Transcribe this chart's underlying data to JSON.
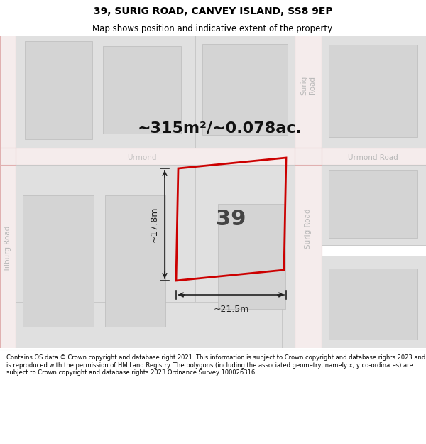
{
  "title": "39, SURIG ROAD, CANVEY ISLAND, SS8 9EP",
  "subtitle": "Map shows position and indicative extent of the property.",
  "area_text": "~315m²/~0.078ac.",
  "property_number": "39",
  "dim_width": "~21.5m",
  "dim_height": "~17.8m",
  "footer": "Contains OS data © Crown copyright and database right 2021. This information is subject to Crown copyright and database rights 2023 and is reproduced with the permission of HM Land Registry. The polygons (including the associated geometry, namely x, y co-ordinates) are subject to Crown copyright and database rights 2023 Ordnance Survey 100026316.",
  "bg_color": "#ffffff",
  "map_bg": "#ebebeb",
  "plot_fill": "#e0e0e0",
  "plot_outline": "#c8c8c8",
  "inner_fill": "#d4d4d4",
  "inner_outline": "#bbbbbb",
  "road_line": "#e0b0b0",
  "red_outline": "#cc0000",
  "road_label_color": "#b8b8b8",
  "dim_line_color": "#222222",
  "title_color": "#000000",
  "footer_color": "#000000",
  "title_fs": 10,
  "subtitle_fs": 8.5,
  "footer_fs": 6.0,
  "area_fs": 16,
  "prop_num_fs": 22,
  "road_label_fs": 7.5,
  "dim_fs": 9
}
